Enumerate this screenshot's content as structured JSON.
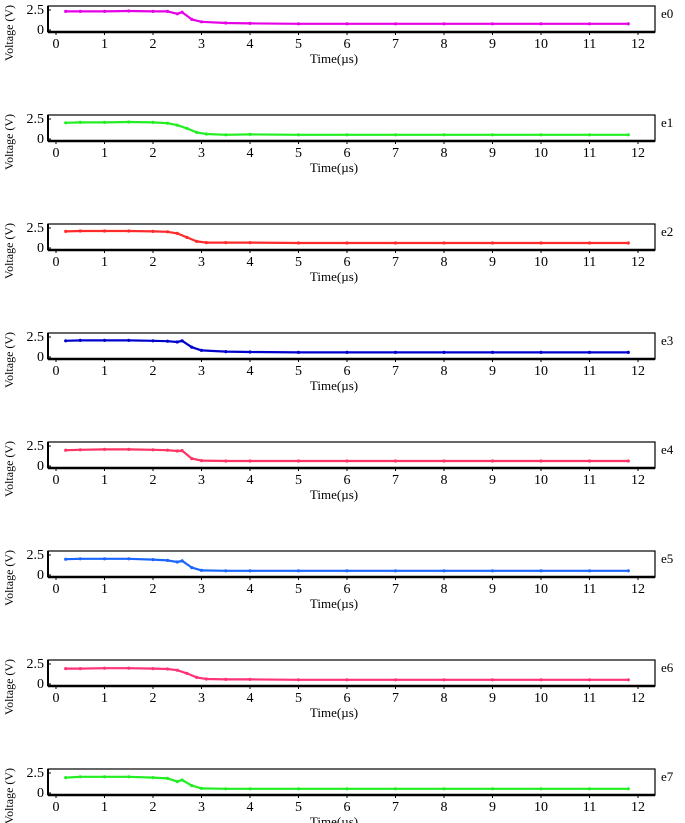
{
  "chart_data": [
    {
      "type": "line",
      "channel_label": "e0",
      "xlabel": "Time(µs)",
      "ylabel": "Voltage (V)",
      "xlim": [
        0,
        12
      ],
      "ylim": [
        0,
        2.5
      ],
      "xticks": [
        0,
        1,
        2,
        3,
        4,
        5,
        6,
        7,
        8,
        9,
        10,
        11,
        12
      ],
      "yticks": [
        "0",
        "2.5"
      ],
      "series": [
        {
          "color": "#e600e6",
          "x": [
            0.2,
            0.5,
            1.0,
            1.5,
            2.0,
            2.3,
            2.5,
            2.6,
            2.8,
            3.0,
            3.5,
            4,
            5,
            6,
            7,
            8,
            9,
            10,
            11,
            11.8
          ],
          "y": [
            2.2,
            2.2,
            2.2,
            2.25,
            2.2,
            2.2,
            1.9,
            2.1,
            1.2,
            0.9,
            0.75,
            0.7,
            0.65,
            0.65,
            0.65,
            0.65,
            0.65,
            0.65,
            0.65,
            0.65
          ]
        }
      ]
    },
    {
      "type": "line",
      "channel_label": "e1",
      "xlabel": "Time(µs)",
      "ylabel": "Voltage (V)",
      "xlim": [
        0,
        12
      ],
      "ylim": [
        0,
        2.5
      ],
      "xticks": [
        0,
        1,
        2,
        3,
        4,
        5,
        6,
        7,
        8,
        9,
        10,
        11,
        12
      ],
      "yticks": [
        "0",
        "2.5"
      ],
      "series": [
        {
          "color": "#22ee22",
          "x": [
            0.2,
            0.5,
            1.0,
            1.5,
            2.0,
            2.3,
            2.5,
            2.7,
            2.9,
            3.1,
            3.5,
            4,
            5,
            6,
            7,
            8,
            9,
            10,
            11,
            11.8
          ],
          "y": [
            1.9,
            1.95,
            1.95,
            2.0,
            1.95,
            1.85,
            1.6,
            1.2,
            0.7,
            0.5,
            0.4,
            0.45,
            0.4,
            0.4,
            0.4,
            0.4,
            0.4,
            0.4,
            0.4,
            0.4
          ]
        }
      ]
    },
    {
      "type": "line",
      "channel_label": "e2",
      "xlabel": "Time(µs)",
      "ylabel": "Voltage (V)",
      "xlim": [
        0,
        12
      ],
      "ylim": [
        0,
        2.5
      ],
      "xticks": [
        0,
        1,
        2,
        3,
        4,
        5,
        6,
        7,
        8,
        9,
        10,
        11,
        12
      ],
      "yticks": [
        "0",
        "2.5"
      ],
      "series": [
        {
          "color": "#ff2a2a",
          "x": [
            0.2,
            0.5,
            1.0,
            1.5,
            2.0,
            2.3,
            2.5,
            2.7,
            2.9,
            3.1,
            3.5,
            4,
            5,
            6,
            7,
            8,
            9,
            10,
            11,
            11.8
          ],
          "y": [
            1.95,
            2.0,
            2.0,
            2.0,
            1.95,
            1.9,
            1.7,
            1.2,
            0.7,
            0.55,
            0.55,
            0.55,
            0.5,
            0.5,
            0.5,
            0.5,
            0.5,
            0.5,
            0.5,
            0.5
          ]
        }
      ]
    },
    {
      "type": "line",
      "channel_label": "e3",
      "xlabel": "Time(µs)",
      "ylabel": "Voltage (V)",
      "xlim": [
        0,
        12
      ],
      "ylim": [
        0,
        2.5
      ],
      "xticks": [
        0,
        1,
        2,
        3,
        4,
        5,
        6,
        7,
        8,
        9,
        10,
        11,
        12
      ],
      "yticks": [
        "0",
        "2.5"
      ],
      "series": [
        {
          "color": "#0000cc",
          "x": [
            0.2,
            0.5,
            1.0,
            1.5,
            2.0,
            2.3,
            2.5,
            2.6,
            2.8,
            3.0,
            3.5,
            4,
            5,
            6,
            7,
            8,
            9,
            10,
            11,
            11.8
          ],
          "y": [
            1.9,
            1.95,
            1.95,
            1.95,
            1.9,
            1.85,
            1.75,
            1.9,
            1.1,
            0.7,
            0.55,
            0.5,
            0.45,
            0.45,
            0.45,
            0.45,
            0.45,
            0.45,
            0.45,
            0.45
          ]
        }
      ]
    },
    {
      "type": "line",
      "channel_label": "e4",
      "xlabel": "Time(µs)",
      "ylabel": "Voltage (V)",
      "xlim": [
        0,
        12
      ],
      "ylim": [
        0,
        2.5
      ],
      "xticks": [
        0,
        1,
        2,
        3,
        4,
        5,
        6,
        7,
        8,
        9,
        10,
        11,
        12
      ],
      "yticks": [
        "0",
        "2.5"
      ],
      "series": [
        {
          "color": "#ff3366",
          "x": [
            0.2,
            0.5,
            1.0,
            1.5,
            2.0,
            2.3,
            2.5,
            2.6,
            2.8,
            3.0,
            3.5,
            4,
            5,
            6,
            7,
            8,
            9,
            10,
            11,
            11.8
          ],
          "y": [
            1.85,
            1.9,
            1.95,
            1.95,
            1.9,
            1.85,
            1.75,
            1.8,
            0.8,
            0.55,
            0.5,
            0.5,
            0.5,
            0.5,
            0.5,
            0.5,
            0.5,
            0.5,
            0.5,
            0.5
          ]
        }
      ]
    },
    {
      "type": "line",
      "channel_label": "e5",
      "xlabel": "Time(µs)",
      "ylabel": "Voltage (V)",
      "xlim": [
        0,
        12
      ],
      "ylim": [
        0,
        2.5
      ],
      "xticks": [
        0,
        1,
        2,
        3,
        4,
        5,
        6,
        7,
        8,
        9,
        10,
        11,
        12
      ],
      "yticks": [
        "0",
        "2.5"
      ],
      "series": [
        {
          "color": "#1a66ff",
          "x": [
            0.2,
            0.5,
            1.0,
            1.5,
            2.0,
            2.3,
            2.5,
            2.6,
            2.8,
            3.0,
            3.5,
            4,
            5,
            6,
            7,
            8,
            9,
            10,
            11,
            11.8
          ],
          "y": [
            1.85,
            1.9,
            1.9,
            1.9,
            1.8,
            1.7,
            1.5,
            1.65,
            0.8,
            0.45,
            0.4,
            0.4,
            0.4,
            0.4,
            0.4,
            0.4,
            0.4,
            0.4,
            0.4,
            0.4
          ]
        }
      ]
    },
    {
      "type": "line",
      "channel_label": "e6",
      "xlabel": "Time(µs)",
      "ylabel": "Voltage (V)",
      "xlim": [
        0,
        12
      ],
      "ylim": [
        0,
        2.5
      ],
      "xticks": [
        0,
        1,
        2,
        3,
        4,
        5,
        6,
        7,
        8,
        9,
        10,
        11,
        12
      ],
      "yticks": [
        "0",
        "2.5"
      ],
      "series": [
        {
          "color": "#ff3377",
          "x": [
            0.2,
            0.5,
            1.0,
            1.5,
            2.0,
            2.3,
            2.5,
            2.7,
            2.9,
            3.1,
            3.5,
            4,
            5,
            6,
            7,
            8,
            9,
            10,
            11,
            11.8
          ],
          "y": [
            1.8,
            1.8,
            1.85,
            1.85,
            1.8,
            1.75,
            1.6,
            1.2,
            0.7,
            0.5,
            0.45,
            0.45,
            0.4,
            0.4,
            0.4,
            0.4,
            0.4,
            0.4,
            0.4,
            0.4
          ]
        }
      ]
    },
    {
      "type": "line",
      "channel_label": "e7",
      "xlabel": "Time(µs)",
      "ylabel": "Voltage (V)",
      "xlim": [
        0,
        12
      ],
      "ylim": [
        0,
        2.5
      ],
      "xticks": [
        0,
        1,
        2,
        3,
        4,
        5,
        6,
        7,
        8,
        9,
        10,
        11,
        12
      ],
      "yticks": [
        "0",
        "2.5"
      ],
      "series": [
        {
          "color": "#22ee22",
          "x": [
            0.2,
            0.5,
            1.0,
            1.5,
            2.0,
            2.3,
            2.5,
            2.6,
            2.8,
            3.0,
            3.5,
            4,
            5,
            6,
            7,
            8,
            9,
            10,
            11,
            11.8
          ],
          "y": [
            1.8,
            1.9,
            1.9,
            1.9,
            1.8,
            1.7,
            1.3,
            1.5,
            0.8,
            0.45,
            0.4,
            0.4,
            0.4,
            0.4,
            0.4,
            0.4,
            0.4,
            0.4,
            0.4,
            0.4
          ]
        }
      ]
    }
  ]
}
